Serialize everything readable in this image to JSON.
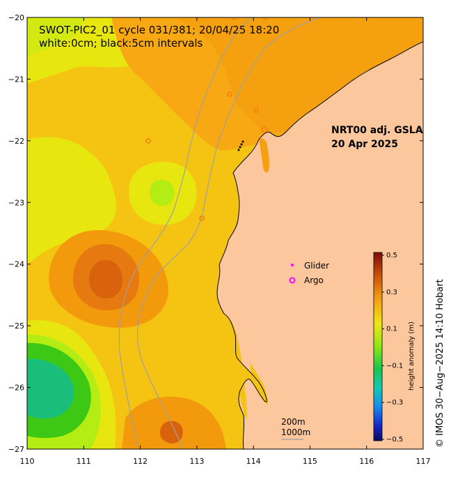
{
  "title": {
    "line1": "SWOT-PIC2_01 cycle 031/381; 20/04/25 18:20",
    "line2": "white:0cm; black:5cm intervals"
  },
  "product": {
    "line1": "NRT00 adj. GSLA",
    "line2": "20 Apr 2025"
  },
  "legend": {
    "glider_label": "Glider",
    "argo_label": "Argo",
    "glider_color": "#ff00ff",
    "argo_color": "#ff00ff"
  },
  "depth_contours": {
    "shallow_label": "200m",
    "deep_label": "1000m"
  },
  "colorbar": {
    "title": "height anomaly (m)",
    "ticks": [
      "0.5",
      "0.3",
      "0.1",
      "−0.1",
      "−0.3",
      "−0.5"
    ],
    "range": [
      -0.5,
      0.5
    ]
  },
  "axes": {
    "x_ticks": [
      "110",
      "111",
      "112",
      "113",
      "114",
      "115",
      "116",
      "117"
    ],
    "y_ticks": [
      "−20",
      "−21",
      "−22",
      "−23",
      "−24",
      "−25",
      "−26",
      "−27"
    ],
    "lon_range": [
      110,
      117
    ],
    "lat_range": [
      -27,
      -20
    ]
  },
  "copyright": "© IMOS 30−Aug−2025 14:10 Hobart",
  "colors": {
    "land": "#fcc79d",
    "ocean_base": "#f9b515",
    "high": "#f29a0c",
    "peak": "#d9620c",
    "yellow": "#e8e60f",
    "lime": "#b4ed14",
    "green": "#3cc814",
    "teal": "#19be7a",
    "coast": "#000000",
    "bathy": "#a0a0a0"
  }
}
